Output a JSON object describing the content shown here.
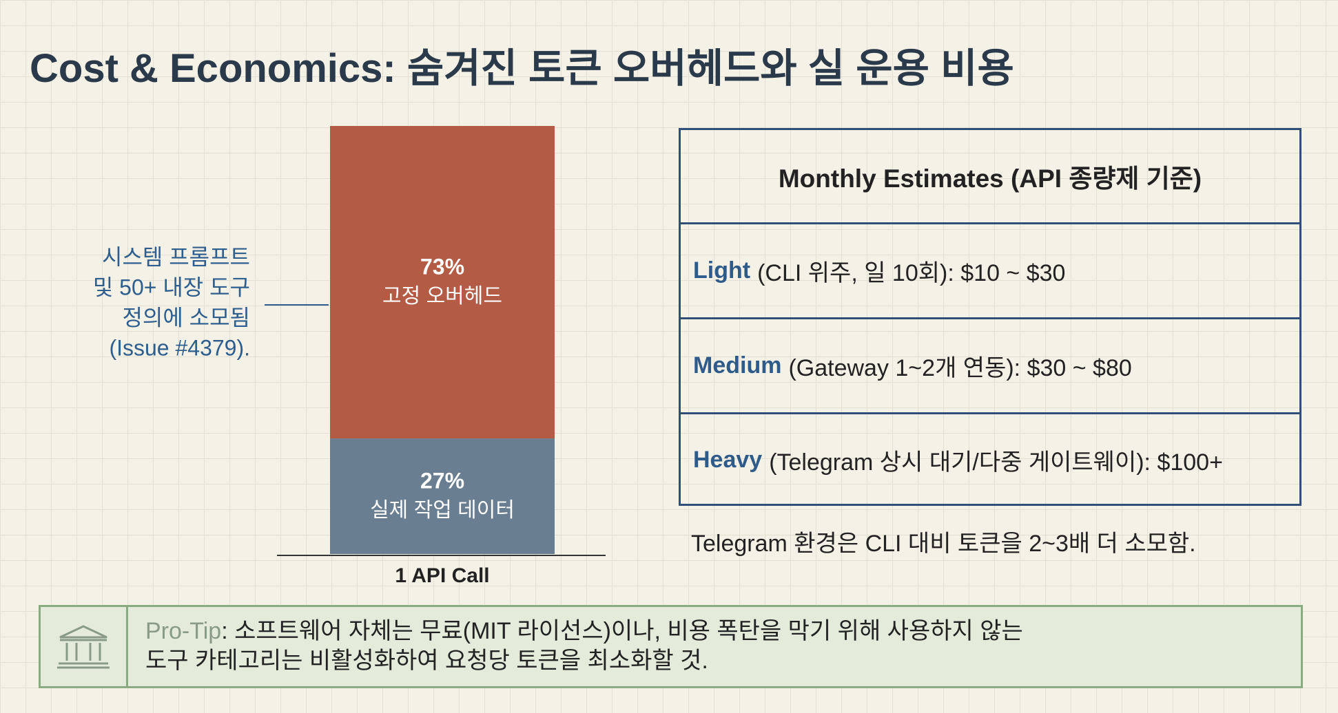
{
  "title": "Cost & Economics: 숨겨진 토큰 오버헤드와 실 운용 비용",
  "chart_data": {
    "type": "bar",
    "stacked": true,
    "categories": [
      "1 API Call"
    ],
    "series": [
      {
        "name": "실제 작업 데이터",
        "color": "#697e90",
        "values": [
          27
        ],
        "value_labels": [
          "27%"
        ]
      },
      {
        "name": "고정 오버헤드",
        "color": "#b35b45",
        "values": [
          73
        ],
        "value_labels": [
          "73%"
        ]
      }
    ],
    "ylim": [
      0,
      100
    ],
    "annotation": [
      "시스템 프롬프트",
      "및 50+ 내장 도구",
      "정의에 소모됨",
      "(Issue #4379)."
    ]
  },
  "table": {
    "title": "Monthly Estimates (API 종량제 기준)",
    "rows": [
      {
        "tier": "Light",
        "detail": "(CLI 위주, 일 10회): $10 ~ $30"
      },
      {
        "tier": "Medium",
        "detail": "(Gateway 1~2개 연동): $30 ~ $80"
      },
      {
        "tier": "Heavy",
        "detail": "(Telegram 상시 대기/다중 게이트웨이): $100+"
      }
    ]
  },
  "note": "Telegram 환경은 CLI 대비 토큰을 2~3배 더 소모함.",
  "pro_tip": {
    "label": "Pro-Tip",
    "lines": [
      ": 소프트웨어 자체는 무료(MIT 라이선스)이나, 비용 폭탄을 막기 위해 사용하지 않는",
      "도구 카테고리는 비활성화하여 요청당 토큰을 최소화할 것."
    ]
  }
}
